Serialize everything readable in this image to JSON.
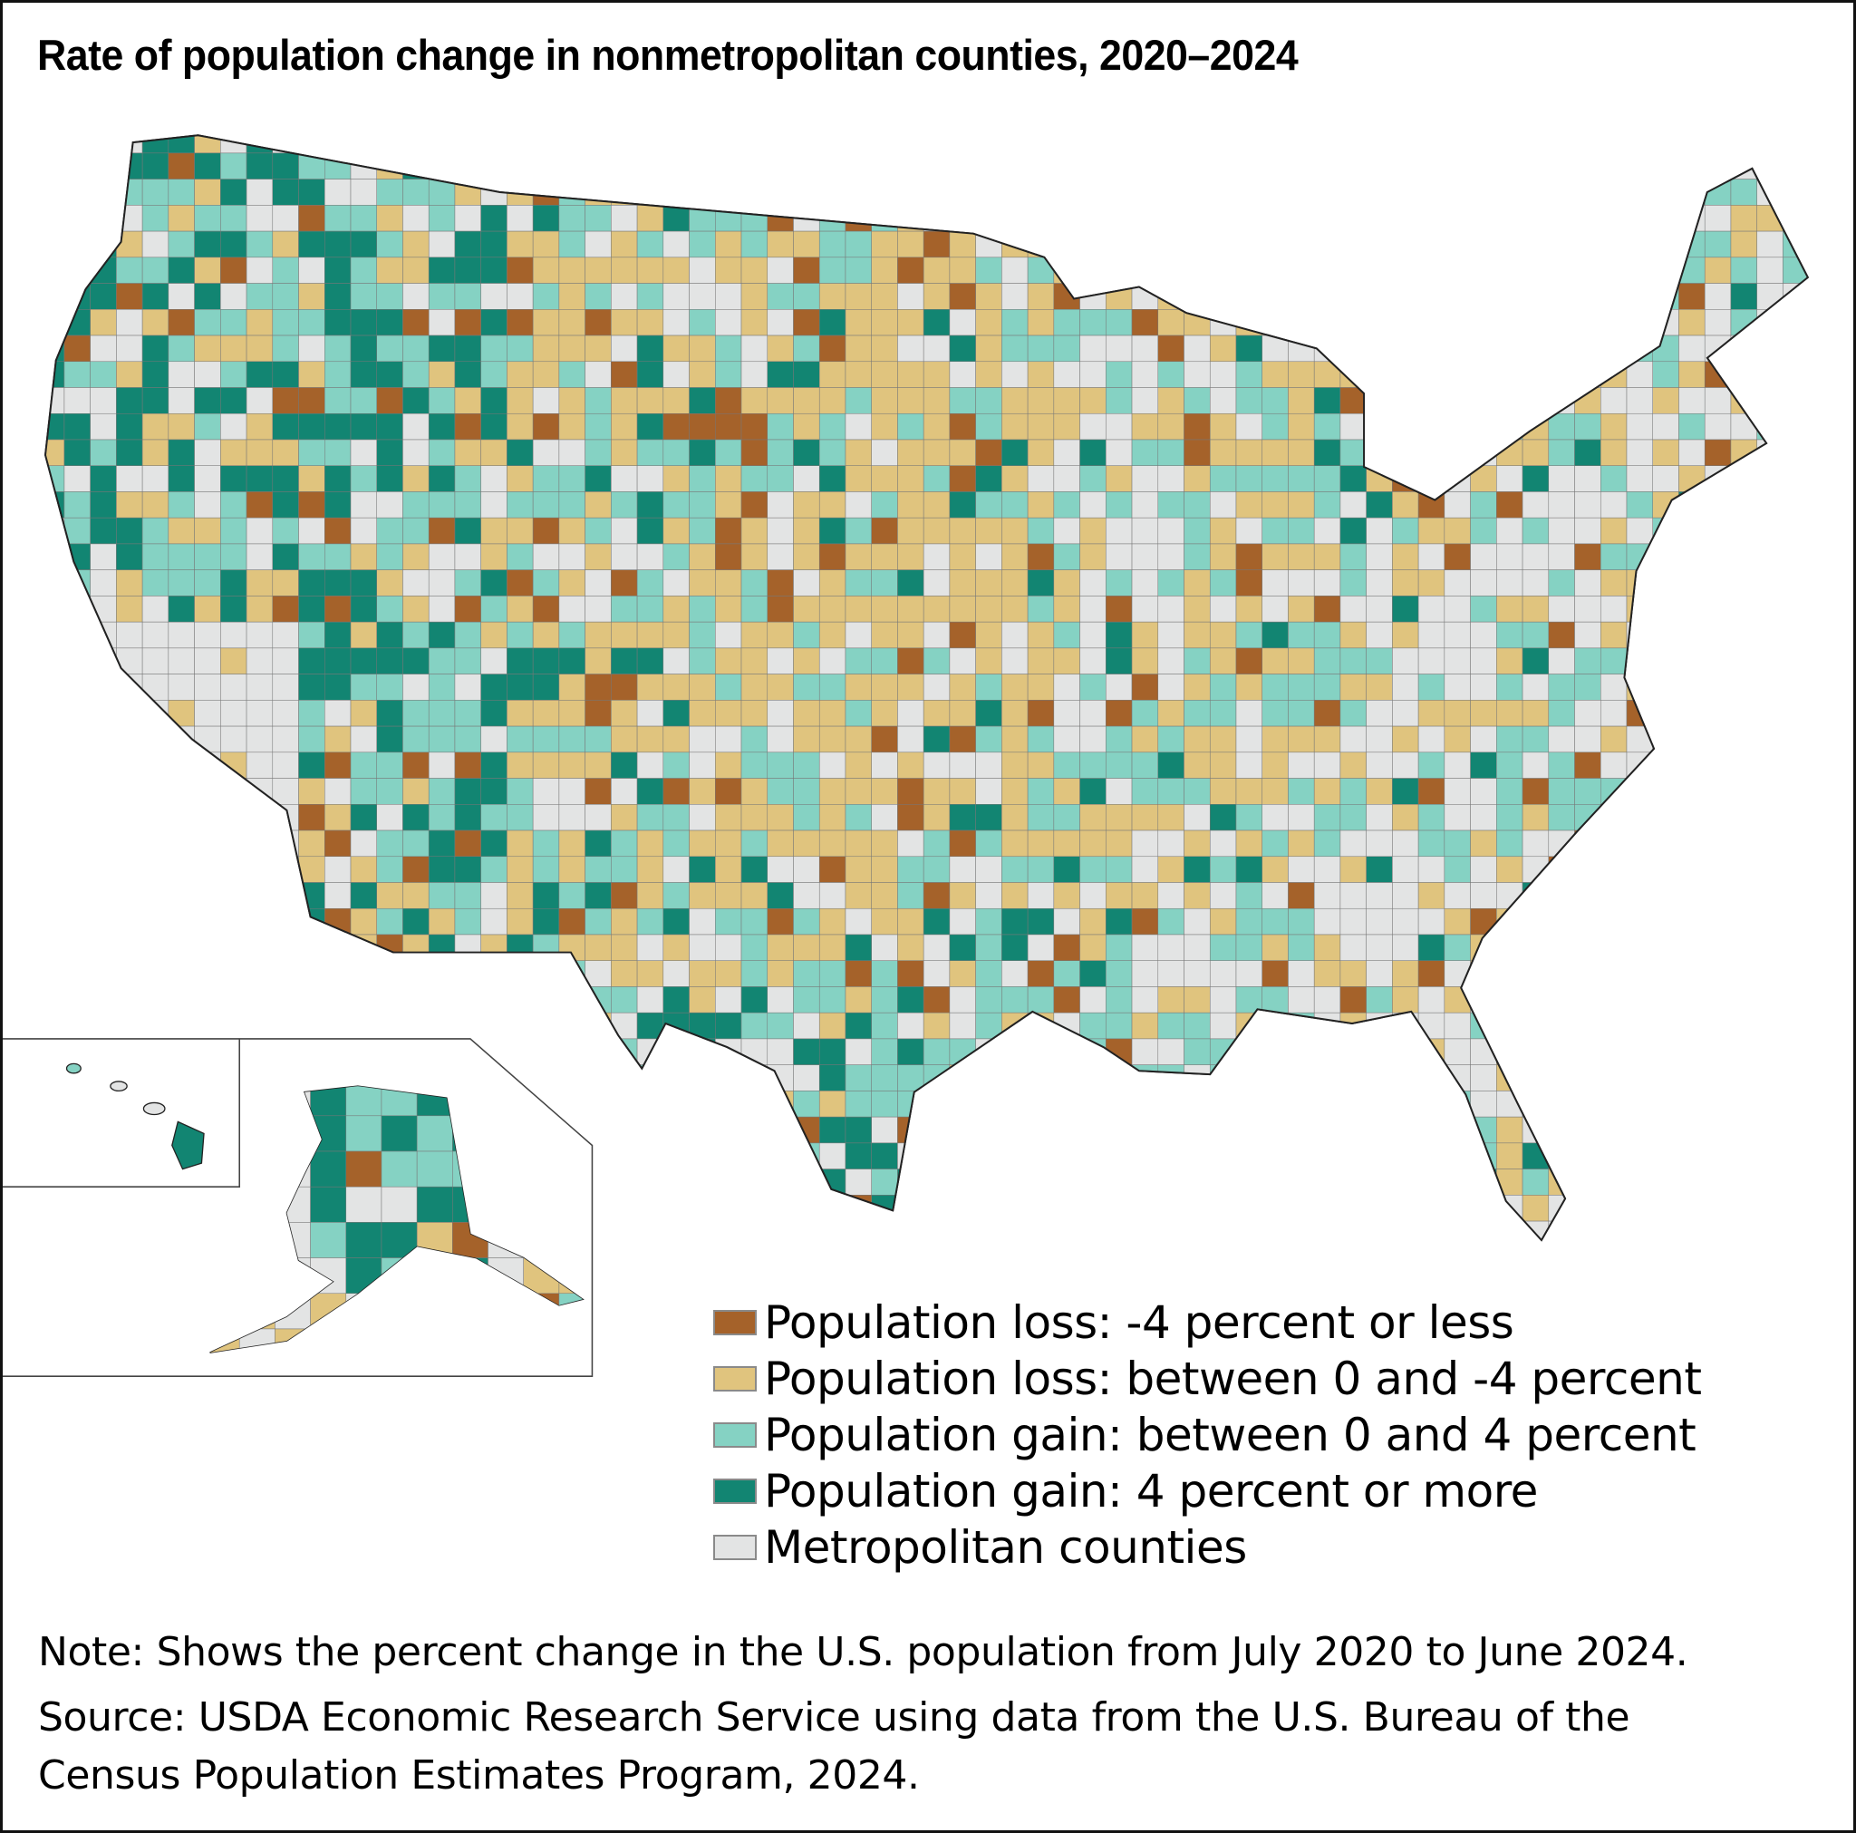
{
  "title": "Rate of population change in nonmetropolitan counties, 2020–2024",
  "legend": [
    {
      "label": "Population loss: -4 percent or less",
      "color": "#a5622a"
    },
    {
      "label": "Population loss: between 0 and -4 percent",
      "color": "#e0c47e"
    },
    {
      "label": "Population gain: between 0 and 4 percent",
      "color": "#85d2c3"
    },
    {
      "label": "Population gain: 4 percent or more",
      "color": "#128572"
    },
    {
      "label": "Metropolitan counties",
      "color": "#e3e4e4"
    }
  ],
  "note": "Note: Shows the percent change in the U.S. population from July 2020 to June 2024.",
  "source_line1": "Source: USDA Economic Research Service using data from the U.S. Bureau of the",
  "source_line2": "Census Population Estimates Program, 2024."
}
